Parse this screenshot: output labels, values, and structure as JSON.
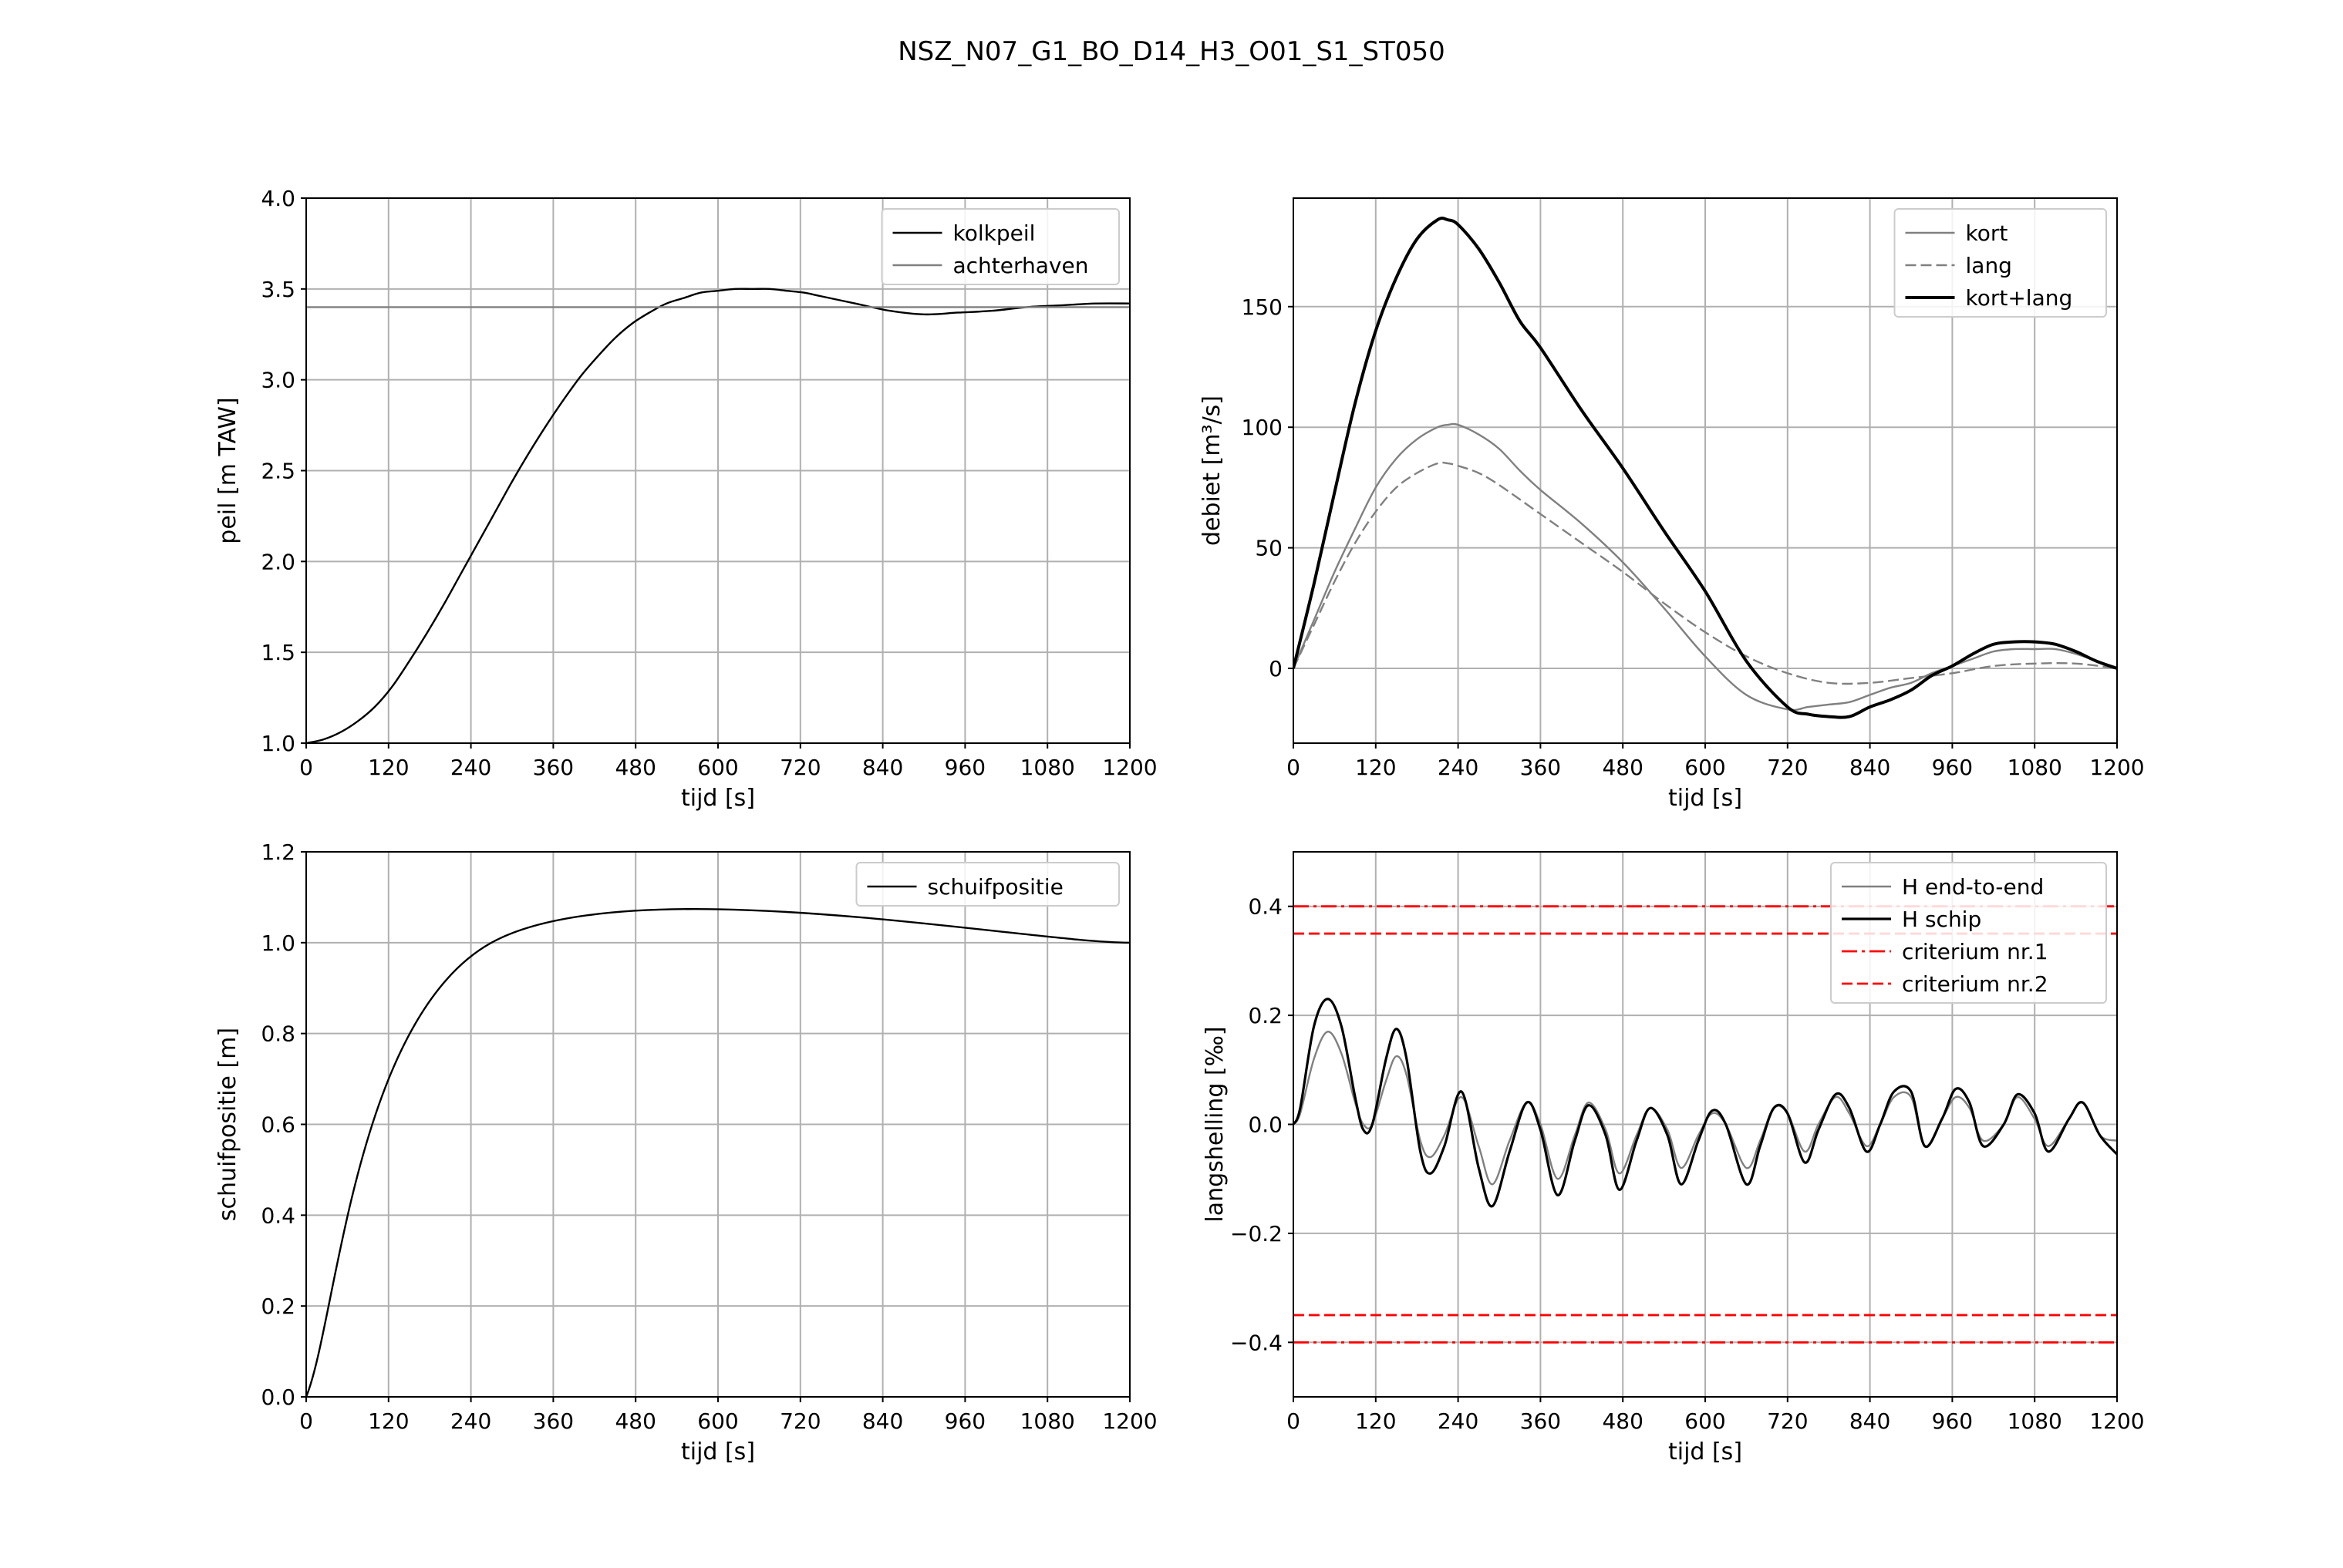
{
  "figure": {
    "title": "NSZ_N07_G1_BO_D14_H3_O01_S1_ST050"
  },
  "chart_data": [
    {
      "id": "peil",
      "type": "line",
      "xlabel": "tijd [s]",
      "ylabel": "peil [m TAW]",
      "xlim": [
        0,
        1200
      ],
      "ylim": [
        1.0,
        4.0
      ],
      "xticks": [
        0,
        120,
        240,
        360,
        480,
        600,
        720,
        840,
        960,
        1080,
        1200
      ],
      "yticks": [
        1.0,
        1.5,
        2.0,
        2.5,
        3.0,
        3.5,
        4.0
      ],
      "ytick_labels": [
        "1.0",
        "1.5",
        "2.0",
        "2.5",
        "3.0",
        "3.5",
        "4.0"
      ],
      "grid": true,
      "legend": "top-right",
      "series": [
        {
          "name": "kolkpeil",
          "color": "#000000",
          "width": 2.4,
          "dash": "solid",
          "x": [
            0,
            25,
            50,
            75,
            100,
            125,
            150,
            175,
            200,
            225,
            250,
            275,
            300,
            325,
            350,
            375,
            400,
            425,
            450,
            475,
            500,
            525,
            550,
            575,
            600,
            625,
            650,
            675,
            700,
            725,
            750,
            800,
            850,
            900,
            950,
            1000,
            1050,
            1100,
            1150,
            1200
          ],
          "y": [
            1.0,
            1.02,
            1.06,
            1.12,
            1.2,
            1.31,
            1.45,
            1.6,
            1.76,
            1.93,
            2.1,
            2.27,
            2.44,
            2.6,
            2.75,
            2.89,
            3.02,
            3.13,
            3.23,
            3.31,
            3.37,
            3.42,
            3.45,
            3.48,
            3.49,
            3.5,
            3.5,
            3.5,
            3.49,
            3.48,
            3.46,
            3.42,
            3.38,
            3.36,
            3.37,
            3.38,
            3.4,
            3.41,
            3.42,
            3.42
          ]
        },
        {
          "name": "achterhaven",
          "color": "#808080",
          "width": 2.4,
          "dash": "solid",
          "x": [
            0,
            1200
          ],
          "y": [
            3.4,
            3.4
          ]
        }
      ]
    },
    {
      "id": "debiet",
      "type": "line",
      "xlabel": "tijd [s]",
      "ylabel": "debiet [m³/s]",
      "xlim": [
        0,
        1200
      ],
      "ylim": [
        -31,
        195
      ],
      "xticks": [
        0,
        120,
        240,
        360,
        480,
        600,
        720,
        840,
        960,
        1080,
        1200
      ],
      "yticks": [
        0,
        50,
        100,
        150
      ],
      "ytick_labels": [
        "0",
        "50",
        "100",
        "150"
      ],
      "grid": true,
      "legend": "top-right",
      "series": [
        {
          "name": "kort",
          "color": "#808080",
          "width": 2.4,
          "dash": "solid",
          "x": [
            0,
            30,
            60,
            90,
            120,
            150,
            180,
            210,
            225,
            240,
            270,
            300,
            330,
            360,
            420,
            480,
            540,
            600,
            660,
            720,
            750,
            780,
            810,
            840,
            870,
            900,
            930,
            960,
            990,
            1020,
            1050,
            1080,
            1110,
            1140,
            1170,
            1200
          ],
          "y": [
            0,
            20,
            40,
            58,
            75,
            87,
            95,
            100,
            101,
            101,
            97,
            91,
            82,
            74,
            60,
            44,
            25,
            5,
            -11,
            -17,
            -16,
            -15,
            -14,
            -11,
            -8,
            -6,
            -2,
            1,
            4,
            7,
            8,
            8,
            8,
            6,
            3,
            0
          ]
        },
        {
          "name": "lang",
          "color": "#808080",
          "width": 2.4,
          "dash": "dashed",
          "x": [
            0,
            30,
            60,
            90,
            120,
            150,
            180,
            210,
            225,
            240,
            270,
            300,
            360,
            420,
            480,
            540,
            600,
            660,
            720,
            780,
            840,
            900,
            960,
            1020,
            1080,
            1140,
            1200
          ],
          "y": [
            0,
            18,
            36,
            52,
            65,
            75,
            81,
            85,
            85,
            84,
            81,
            76,
            64,
            52,
            40,
            27,
            15,
            5,
            -2,
            -6,
            -6,
            -4,
            -2,
            1,
            2,
            2,
            0
          ]
        },
        {
          "name": "kort+lang",
          "color": "#000000",
          "width": 4.0,
          "dash": "solid",
          "x": [
            0,
            30,
            60,
            90,
            120,
            150,
            180,
            210,
            225,
            240,
            270,
            300,
            330,
            360,
            420,
            480,
            540,
            600,
            660,
            720,
            750,
            780,
            810,
            840,
            870,
            900,
            930,
            960,
            990,
            1020,
            1050,
            1080,
            1110,
            1140,
            1170,
            1200
          ],
          "y": [
            0,
            35,
            73,
            110,
            140,
            162,
            178,
            186,
            186,
            184,
            174,
            160,
            144,
            133,
            107,
            83,
            57,
            32,
            3,
            -16,
            -19,
            -20,
            -20,
            -16,
            -13,
            -9,
            -3,
            1,
            6,
            10,
            11,
            11,
            10,
            7,
            3,
            0
          ]
        }
      ]
    },
    {
      "id": "schuif",
      "type": "line",
      "xlabel": "tijd [s]",
      "ylabel": "schuifpositie [m]",
      "xlim": [
        0,
        1200
      ],
      "ylim": [
        0.0,
        1.2
      ],
      "xticks": [
        0,
        120,
        240,
        360,
        480,
        600,
        720,
        840,
        960,
        1080,
        1200
      ],
      "yticks": [
        0.0,
        0.2,
        0.4,
        0.6,
        0.8,
        1.0,
        1.2
      ],
      "ytick_labels": [
        "0.0",
        "0.2",
        "0.4",
        "0.6",
        "0.8",
        "1.0",
        "1.2"
      ],
      "grid": true,
      "legend": "top-right",
      "series": [
        {
          "name": "schuifpositie",
          "color": "#000000",
          "width": 2.4,
          "dash": "solid",
          "x": [
            0,
            270,
            1200
          ],
          "y": [
            0.0,
            1.0,
            1.0
          ]
        }
      ]
    },
    {
      "id": "langshelling",
      "type": "line",
      "xlabel": "tijd [s]",
      "ylabel": "langshelling [‰]",
      "xlim": [
        0,
        1200
      ],
      "ylim": [
        -0.5,
        0.5
      ],
      "xticks": [
        0,
        120,
        240,
        360,
        480,
        600,
        720,
        840,
        960,
        1080,
        1200
      ],
      "yticks": [
        -0.4,
        -0.2,
        0.0,
        0.2,
        0.4
      ],
      "ytick_labels": [
        "−0.4",
        "−0.2",
        "0.0",
        "0.2",
        "0.4"
      ],
      "grid": true,
      "legend": "top-right",
      "series": [
        {
          "name": "H end-to-end",
          "color": "#808080",
          "width": 2.4,
          "dash": "solid",
          "x": [
            0,
            10,
            30,
            50,
            70,
            90,
            102,
            115,
            135,
            150,
            165,
            185,
            200,
            220,
            245,
            270,
            290,
            315,
            340,
            360,
            385,
            410,
            430,
            455,
            475,
            500,
            520,
            545,
            565,
            590,
            610,
            630,
            660,
            680,
            700,
            720,
            745,
            765,
            790,
            810,
            835,
            855,
            875,
            900,
            920,
            945,
            965,
            985,
            1005,
            1035,
            1055,
            1080,
            1100,
            1130,
            1150,
            1175,
            1200
          ],
          "y": [
            0,
            0.02,
            0.12,
            0.17,
            0.13,
            0.04,
            0.0,
            0.0,
            0.08,
            0.125,
            0.09,
            -0.03,
            -0.06,
            -0.02,
            0.05,
            -0.04,
            -0.11,
            -0.03,
            0.04,
            0.0,
            -0.1,
            -0.02,
            0.04,
            -0.01,
            -0.09,
            -0.02,
            0.03,
            -0.01,
            -0.08,
            -0.02,
            0.02,
            0.0,
            -0.08,
            -0.03,
            0.03,
            0.02,
            -0.05,
            0.0,
            0.05,
            0.02,
            -0.04,
            0.0,
            0.05,
            0.05,
            -0.04,
            0.01,
            0.05,
            0.03,
            -0.03,
            0.0,
            0.05,
            0.01,
            -0.04,
            0.01,
            0.04,
            -0.02,
            -0.03
          ]
        },
        {
          "name": "H schip",
          "color": "#000000",
          "width": 3.2,
          "dash": "solid",
          "x": [
            0,
            10,
            30,
            50,
            70,
            90,
            102,
            115,
            135,
            150,
            165,
            185,
            200,
            220,
            245,
            270,
            290,
            315,
            340,
            360,
            385,
            410,
            430,
            455,
            475,
            500,
            520,
            545,
            565,
            590,
            610,
            630,
            660,
            680,
            700,
            720,
            745,
            765,
            790,
            810,
            835,
            855,
            875,
            900,
            920,
            945,
            965,
            985,
            1005,
            1035,
            1055,
            1080,
            1100,
            1130,
            1150,
            1175,
            1200
          ],
          "y": [
            0,
            0.03,
            0.18,
            0.23,
            0.18,
            0.05,
            -0.01,
            0.0,
            0.12,
            0.175,
            0.12,
            -0.05,
            -0.09,
            -0.04,
            0.06,
            -0.08,
            -0.15,
            -0.05,
            0.04,
            -0.01,
            -0.13,
            -0.03,
            0.035,
            -0.02,
            -0.12,
            -0.03,
            0.03,
            -0.02,
            -0.11,
            -0.03,
            0.025,
            0.0,
            -0.11,
            -0.04,
            0.03,
            0.02,
            -0.07,
            -0.01,
            0.055,
            0.03,
            -0.05,
            0.0,
            0.06,
            0.06,
            -0.04,
            0.01,
            0.065,
            0.04,
            -0.04,
            0.0,
            0.055,
            0.02,
            -0.05,
            0.01,
            0.04,
            -0.02,
            -0.055
          ]
        },
        {
          "name": "criterium nr.1",
          "color": "#ff0000",
          "width": 2.8,
          "dash": "dashdot",
          "x": [
            0,
            1200
          ],
          "y": [
            0.4,
            0.4
          ]
        },
        {
          "name": "criterium nr.2",
          "color": "#ff0000",
          "width": 2.8,
          "dash": "dashed",
          "x": [
            0,
            1200
          ],
          "y": [
            0.35,
            0.35
          ]
        },
        {
          "name": "",
          "color": "#ff0000",
          "width": 2.8,
          "dash": "dashed",
          "x": [
            0,
            1200
          ],
          "y": [
            -0.35,
            -0.35
          ]
        },
        {
          "name": "",
          "color": "#ff0000",
          "width": 2.8,
          "dash": "dashdot",
          "x": [
            0,
            1200
          ],
          "y": [
            -0.4,
            -0.4
          ]
        }
      ]
    }
  ]
}
